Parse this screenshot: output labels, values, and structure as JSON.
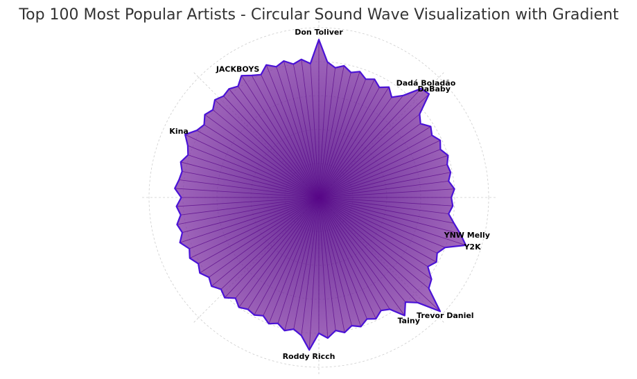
{
  "chart_data": {
    "type": "polar",
    "title": "Top 100 Most Popular Artists - Circular Sound Wave Visualization with Gradient",
    "categories": [
      "Don Toliver",
      null,
      null,
      null,
      null,
      null,
      null,
      null,
      null,
      null,
      null,
      null,
      "Dadá Boladão",
      "DaBaby",
      null,
      null,
      null,
      null,
      null,
      null,
      null,
      null,
      null,
      null,
      null,
      null,
      null,
      null,
      null,
      "YNW Melly",
      "Y2K",
      null,
      null,
      null,
      null,
      null,
      null,
      "Trevor Daniel",
      null,
      null,
      "Tainy",
      null,
      null,
      null,
      null,
      null,
      null,
      null,
      null,
      null,
      null,
      "Roddy Ricch",
      null,
      null,
      null,
      null,
      null,
      null,
      null,
      null,
      null,
      null,
      null,
      null,
      null,
      null,
      null,
      null,
      null,
      null,
      null,
      null,
      null,
      null,
      null,
      null,
      null,
      null,
      null,
      null,
      null,
      null,
      "Kina",
      null,
      null,
      null,
      null,
      null,
      null,
      null,
      null,
      "JACKBOYS",
      null,
      null,
      null,
      null,
      null,
      null,
      null,
      null
    ],
    "values": [
      93,
      80,
      77,
      79,
      76,
      78,
      75,
      77,
      74,
      77,
      73,
      78,
      88,
      89,
      77,
      74,
      78,
      76,
      79,
      77,
      80,
      78,
      79,
      77,
      80,
      78,
      79,
      77,
      81,
      86,
      91,
      80,
      77,
      79,
      76,
      82,
      84,
      98,
      85,
      80,
      86,
      78,
      76,
      79,
      77,
      80,
      78,
      81,
      79,
      83,
      80,
      90,
      82,
      79,
      81,
      78,
      80,
      77,
      79,
      78,
      80,
      77,
      81,
      79,
      82,
      80,
      83,
      81,
      84,
      82,
      86,
      83,
      85,
      82,
      84,
      81,
      85,
      83,
      82,
      84,
      81,
      83,
      87,
      82,
      80,
      83,
      81,
      84,
      82,
      83,
      81,
      85,
      82,
      80,
      84,
      81,
      83,
      80,
      82,
      79
    ],
    "color": "#8e44ad",
    "edge_color": "#4a12d6",
    "spoke_color": "#5a0a8a",
    "rlim": [
      0,
      100
    ],
    "rticks": [
      20,
      40,
      60,
      80,
      100
    ],
    "grid": true
  }
}
